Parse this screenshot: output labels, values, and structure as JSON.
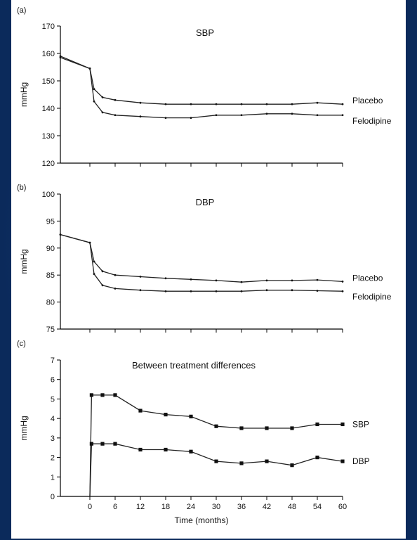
{
  "chart_data": [
    {
      "panel": "(a)",
      "type": "line",
      "title": "SBP",
      "ylabel": "mmHg",
      "xlabel": "",
      "ylim": [
        120,
        170
      ],
      "yticks": [
        120,
        130,
        140,
        150,
        160,
        170
      ],
      "xlim": [
        -7,
        60
      ],
      "markers": "dots",
      "series": [
        {
          "name": "Placebo",
          "x": [
            -7,
            0,
            1,
            3,
            6,
            12,
            18,
            24,
            30,
            36,
            42,
            48,
            54,
            60
          ],
          "y": [
            159,
            154.5,
            147,
            144,
            143,
            142,
            141.5,
            141.5,
            141.5,
            141.5,
            141.5,
            141.5,
            142,
            141.5
          ]
        },
        {
          "name": "Felodipine",
          "x": [
            -7,
            0,
            1,
            3,
            6,
            12,
            18,
            24,
            30,
            36,
            42,
            48,
            54,
            60
          ],
          "y": [
            158.5,
            154.5,
            142.5,
            138.5,
            137.5,
            137,
            136.5,
            136.5,
            137.5,
            137.5,
            138,
            138,
            137.5,
            137.5
          ]
        }
      ]
    },
    {
      "panel": "(b)",
      "type": "line",
      "title": "DBP",
      "ylabel": "mmHg",
      "xlabel": "",
      "ylim": [
        75,
        100
      ],
      "yticks": [
        75,
        80,
        85,
        90,
        95,
        100
      ],
      "xlim": [
        -7,
        60
      ],
      "markers": "dots",
      "series": [
        {
          "name": "Placebo",
          "x": [
            -7,
            0,
            1,
            3,
            6,
            12,
            18,
            24,
            30,
            36,
            42,
            48,
            54,
            60
          ],
          "y": [
            92.5,
            91,
            87.5,
            85.7,
            85,
            84.7,
            84.4,
            84.2,
            84,
            83.7,
            84,
            84,
            84.1,
            83.8
          ]
        },
        {
          "name": "Felodipine",
          "x": [
            -7,
            0,
            1,
            3,
            6,
            12,
            18,
            24,
            30,
            36,
            42,
            48,
            54,
            60
          ],
          "y": [
            92.5,
            91,
            85.2,
            83.1,
            82.5,
            82.2,
            82,
            82,
            82,
            82,
            82.2,
            82.2,
            82.1,
            82
          ]
        }
      ]
    },
    {
      "panel": "(c)",
      "type": "line",
      "title": "Between treatment differences",
      "ylabel": "mmHg",
      "xlabel": "Time (months)",
      "ylim": [
        0,
        7
      ],
      "yticks": [
        0,
        1,
        2,
        3,
        4,
        5,
        6,
        7
      ],
      "xlim": [
        -7,
        60
      ],
      "xticks": [
        0,
        6,
        12,
        18,
        24,
        30,
        36,
        42,
        48,
        54,
        60
      ],
      "markers": "squares",
      "series": [
        {
          "name": "SBP",
          "x": [
            0,
            0.4,
            3,
            6,
            12,
            18,
            24,
            30,
            36,
            42,
            48,
            54,
            60
          ],
          "y": [
            0,
            5.2,
            5.2,
            5.2,
            4.4,
            4.2,
            4.1,
            3.6,
            3.5,
            3.5,
            3.5,
            3.7,
            3.7
          ]
        },
        {
          "name": "DBP",
          "x": [
            0,
            0.4,
            3,
            6,
            12,
            18,
            24,
            30,
            36,
            42,
            48,
            54,
            60
          ],
          "y": [
            0,
            2.7,
            2.7,
            2.7,
            2.4,
            2.4,
            2.3,
            1.8,
            1.7,
            1.8,
            1.6,
            2.0,
            1.8
          ]
        }
      ]
    }
  ]
}
